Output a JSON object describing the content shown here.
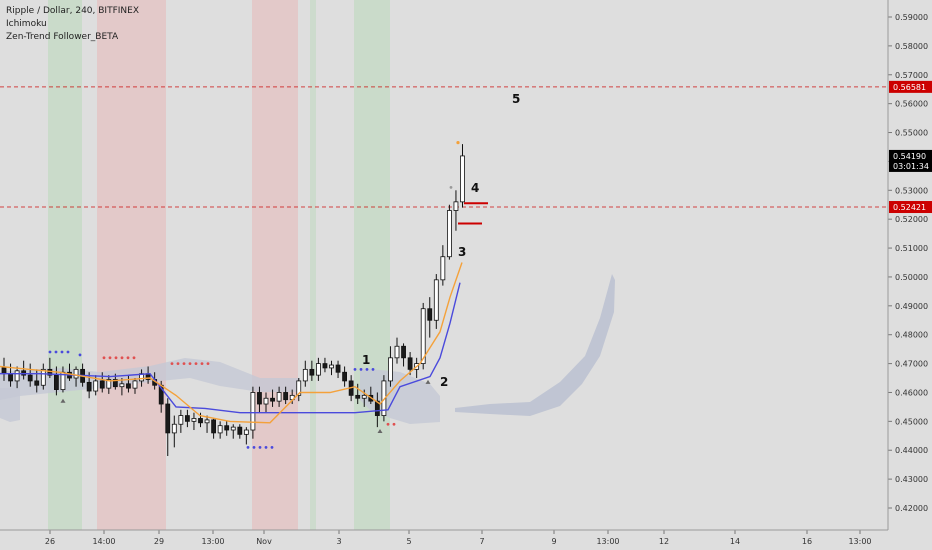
{
  "header": {
    "symbol_line": "Ripple / Dollar, 240, BITFINEX",
    "indicators": [
      "Ichimoku",
      "Zen-Trend Follower_BETA"
    ]
  },
  "colors": {
    "background": "#dedede",
    "bull_candle": "#ffffff",
    "bear_candle": "#1a1a1a",
    "orange_line": "#f4a13a",
    "blue_line": "#4a4adc",
    "cloud": "#c4c8d4",
    "green_zone": "#b9d8b9",
    "red_zone": "#e8b8b8",
    "alert_red": "#cc0000",
    "current_price_bg": "#000000"
  },
  "chart_data": {
    "type": "candlestick",
    "title": "Ripple / Dollar, 240, BITFINEX",
    "y_axis": {
      "ticks": [
        "0.59000",
        "0.58000",
        "0.57000",
        "0.56000",
        "0.55000",
        "0.54000",
        "0.53000",
        "0.52000",
        "0.51000",
        "0.50000",
        "0.49000",
        "0.48000",
        "0.47000",
        "0.46000",
        "0.45000",
        "0.44000",
        "0.43000",
        "0.42000"
      ],
      "range": [
        0.415,
        0.595
      ]
    },
    "x_axis": {
      "ticks": [
        "26",
        "14:00",
        "29",
        "13:00",
        "Nov",
        "3",
        "5",
        "7",
        "9",
        "13:00",
        "12",
        "14",
        "16",
        "13:00"
      ]
    },
    "price_labels": [
      {
        "value": 0.56581,
        "text": "0.56581",
        "style": "alert"
      },
      {
        "value": 0.5419,
        "text": "0.54190",
        "sub": "03:01:34",
        "style": "current"
      },
      {
        "value": 0.52421,
        "text": "0.52421",
        "style": "alert"
      }
    ],
    "annotations": [
      "1",
      "2",
      "3",
      "4",
      "5"
    ],
    "candles": [
      {
        "o": 0.4685,
        "h": 0.472,
        "l": 0.464,
        "c": 0.4665
      },
      {
        "o": 0.4665,
        "h": 0.47,
        "l": 0.462,
        "c": 0.464
      },
      {
        "o": 0.464,
        "h": 0.469,
        "l": 0.4615,
        "c": 0.4675
      },
      {
        "o": 0.4675,
        "h": 0.471,
        "l": 0.4645,
        "c": 0.466
      },
      {
        "o": 0.466,
        "h": 0.47,
        "l": 0.462,
        "c": 0.464
      },
      {
        "o": 0.464,
        "h": 0.468,
        "l": 0.46,
        "c": 0.4625
      },
      {
        "o": 0.4625,
        "h": 0.47,
        "l": 0.461,
        "c": 0.468
      },
      {
        "o": 0.468,
        "h": 0.472,
        "l": 0.465,
        "c": 0.466
      },
      {
        "o": 0.466,
        "h": 0.469,
        "l": 0.459,
        "c": 0.461
      },
      {
        "o": 0.461,
        "h": 0.469,
        "l": 0.46,
        "c": 0.467
      },
      {
        "o": 0.467,
        "h": 0.47,
        "l": 0.464,
        "c": 0.465
      },
      {
        "o": 0.465,
        "h": 0.469,
        "l": 0.462,
        "c": 0.468
      },
      {
        "o": 0.468,
        "h": 0.47,
        "l": 0.462,
        "c": 0.4635
      },
      {
        "o": 0.4635,
        "h": 0.467,
        "l": 0.458,
        "c": 0.4605
      },
      {
        "o": 0.4605,
        "h": 0.466,
        "l": 0.459,
        "c": 0.464
      },
      {
        "o": 0.464,
        "h": 0.467,
        "l": 0.46,
        "c": 0.4615
      },
      {
        "o": 0.4615,
        "h": 0.466,
        "l": 0.4595,
        "c": 0.4645
      },
      {
        "o": 0.4645,
        "h": 0.4665,
        "l": 0.461,
        "c": 0.462
      },
      {
        "o": 0.462,
        "h": 0.465,
        "l": 0.459,
        "c": 0.463
      },
      {
        "o": 0.463,
        "h": 0.466,
        "l": 0.46,
        "c": 0.4615
      },
      {
        "o": 0.4615,
        "h": 0.465,
        "l": 0.4595,
        "c": 0.464
      },
      {
        "o": 0.464,
        "h": 0.468,
        "l": 0.462,
        "c": 0.4665
      },
      {
        "o": 0.4665,
        "h": 0.469,
        "l": 0.463,
        "c": 0.4645
      },
      {
        "o": 0.4645,
        "h": 0.467,
        "l": 0.461,
        "c": 0.4625
      },
      {
        "o": 0.4625,
        "h": 0.464,
        "l": 0.453,
        "c": 0.456
      },
      {
        "o": 0.456,
        "h": 0.458,
        "l": 0.438,
        "c": 0.446
      },
      {
        "o": 0.446,
        "h": 0.452,
        "l": 0.441,
        "c": 0.449
      },
      {
        "o": 0.449,
        "h": 0.454,
        "l": 0.446,
        "c": 0.452
      },
      {
        "o": 0.452,
        "h": 0.454,
        "l": 0.448,
        "c": 0.45
      },
      {
        "o": 0.45,
        "h": 0.453,
        "l": 0.447,
        "c": 0.451
      },
      {
        "o": 0.451,
        "h": 0.453,
        "l": 0.448,
        "c": 0.4495
      },
      {
        "o": 0.4495,
        "h": 0.452,
        "l": 0.446,
        "c": 0.4505
      },
      {
        "o": 0.4505,
        "h": 0.451,
        "l": 0.444,
        "c": 0.446
      },
      {
        "o": 0.446,
        "h": 0.45,
        "l": 0.444,
        "c": 0.4485
      },
      {
        "o": 0.4485,
        "h": 0.45,
        "l": 0.445,
        "c": 0.447
      },
      {
        "o": 0.447,
        "h": 0.449,
        "l": 0.444,
        "c": 0.448
      },
      {
        "o": 0.448,
        "h": 0.449,
        "l": 0.444,
        "c": 0.4455
      },
      {
        "o": 0.4455,
        "h": 0.448,
        "l": 0.442,
        "c": 0.447
      },
      {
        "o": 0.447,
        "h": 0.462,
        "l": 0.444,
        "c": 0.46
      },
      {
        "o": 0.46,
        "h": 0.462,
        "l": 0.453,
        "c": 0.456
      },
      {
        "o": 0.456,
        "h": 0.46,
        "l": 0.453,
        "c": 0.458
      },
      {
        "o": 0.458,
        "h": 0.461,
        "l": 0.455,
        "c": 0.457
      },
      {
        "o": 0.457,
        "h": 0.462,
        "l": 0.455,
        "c": 0.46
      },
      {
        "o": 0.46,
        "h": 0.462,
        "l": 0.456,
        "c": 0.4575
      },
      {
        "o": 0.4575,
        "h": 0.461,
        "l": 0.456,
        "c": 0.459
      },
      {
        "o": 0.459,
        "h": 0.465,
        "l": 0.457,
        "c": 0.464
      },
      {
        "o": 0.464,
        "h": 0.471,
        "l": 0.462,
        "c": 0.468
      },
      {
        "o": 0.468,
        "h": 0.471,
        "l": 0.464,
        "c": 0.466
      },
      {
        "o": 0.466,
        "h": 0.472,
        "l": 0.464,
        "c": 0.47
      },
      {
        "o": 0.47,
        "h": 0.472,
        "l": 0.467,
        "c": 0.4685
      },
      {
        "o": 0.4685,
        "h": 0.471,
        "l": 0.466,
        "c": 0.4695
      },
      {
        "o": 0.4695,
        "h": 0.471,
        "l": 0.465,
        "c": 0.467
      },
      {
        "o": 0.467,
        "h": 0.469,
        "l": 0.462,
        "c": 0.464
      },
      {
        "o": 0.464,
        "h": 0.466,
        "l": 0.457,
        "c": 0.459
      },
      {
        "o": 0.459,
        "h": 0.463,
        "l": 0.456,
        "c": 0.458
      },
      {
        "o": 0.458,
        "h": 0.461,
        "l": 0.455,
        "c": 0.459
      },
      {
        "o": 0.459,
        "h": 0.462,
        "l": 0.456,
        "c": 0.457
      },
      {
        "o": 0.457,
        "h": 0.46,
        "l": 0.448,
        "c": 0.452
      },
      {
        "o": 0.452,
        "h": 0.466,
        "l": 0.45,
        "c": 0.464
      },
      {
        "o": 0.464,
        "h": 0.476,
        "l": 0.462,
        "c": 0.472
      },
      {
        "o": 0.472,
        "h": 0.479,
        "l": 0.47,
        "c": 0.476
      },
      {
        "o": 0.476,
        "h": 0.477,
        "l": 0.469,
        "c": 0.472
      },
      {
        "o": 0.472,
        "h": 0.474,
        "l": 0.466,
        "c": 0.468
      },
      {
        "o": 0.468,
        "h": 0.472,
        "l": 0.465,
        "c": 0.47
      },
      {
        "o": 0.47,
        "h": 0.491,
        "l": 0.468,
        "c": 0.489
      },
      {
        "o": 0.489,
        "h": 0.493,
        "l": 0.479,
        "c": 0.485
      },
      {
        "o": 0.485,
        "h": 0.501,
        "l": 0.482,
        "c": 0.499
      },
      {
        "o": 0.499,
        "h": 0.511,
        "l": 0.497,
        "c": 0.507
      },
      {
        "o": 0.507,
        "h": 0.525,
        "l": 0.506,
        "c": 0.523
      },
      {
        "o": 0.523,
        "h": 0.53,
        "l": 0.516,
        "c": 0.526
      },
      {
        "o": 0.526,
        "h": 0.546,
        "l": 0.524,
        "c": 0.5419
      }
    ]
  }
}
